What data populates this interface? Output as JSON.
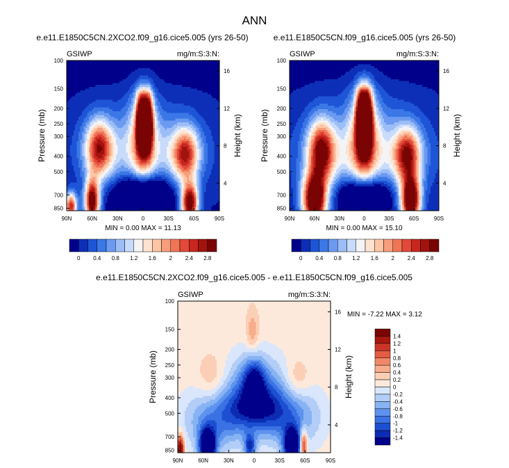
{
  "page": {
    "title": "ANN"
  },
  "chart_data": [
    {
      "type": "heatmap",
      "title": "e.e11.E1850C5CN.2XCO2.f09_g16.cice5.005 (yrs 26-50)",
      "left_label": "GSIWP",
      "right_label": "mg/m:S:3:N:",
      "xlabel": "",
      "ylabel": "Pressure (mb)",
      "y2label": "Height (km)",
      "x_ticks": [
        "90N",
        "60N",
        "30N",
        "0",
        "30S",
        "60S",
        "90S"
      ],
      "y_ticks": [
        "100",
        "150",
        "200",
        "250",
        "300",
        "400",
        "500",
        "700",
        "850"
      ],
      "y2_ticks": [
        "16",
        "12",
        "8",
        "4"
      ],
      "stats": "MIN =  0.00  MAX = 11.13",
      "min": 0.0,
      "max": 11.13,
      "colorbar": {
        "orientation": "horizontal",
        "labels": [
          "0",
          "0.4",
          "0.8",
          "1.2",
          "1.6",
          "2",
          "2.4",
          "2.8"
        ],
        "levels": [
          -0.2,
          0,
          0.2,
          0.4,
          0.6,
          0.8,
          1.0,
          1.2,
          1.4,
          1.6,
          1.8,
          2.0,
          2.2,
          2.4,
          2.6,
          2.8,
          3.0
        ]
      }
    },
    {
      "type": "heatmap",
      "title": "e.e11.E1850C5CN.f09_g16.cice5.005 (yrs 26-50)",
      "left_label": "GSIWP",
      "right_label": "mg/m:S:3:N:",
      "xlabel": "",
      "ylabel": "Pressure (mb)",
      "y2label": "Height (km)",
      "x_ticks": [
        "90N",
        "60N",
        "30N",
        "0",
        "30S",
        "60S",
        "90S"
      ],
      "y_ticks": [
        "100",
        "150",
        "200",
        "250",
        "300",
        "400",
        "500",
        "700",
        "850"
      ],
      "y2_ticks": [
        "16",
        "12",
        "8",
        "4"
      ],
      "stats": "MIN =  0.00  MAX = 15.10",
      "min": 0.0,
      "max": 15.1,
      "colorbar": {
        "orientation": "horizontal",
        "labels": [
          "0",
          "0.4",
          "0.8",
          "1.2",
          "1.6",
          "2",
          "2.4",
          "2.8"
        ],
        "levels": [
          -0.2,
          0,
          0.2,
          0.4,
          0.6,
          0.8,
          1.0,
          1.2,
          1.4,
          1.6,
          1.8,
          2.0,
          2.2,
          2.4,
          2.6,
          2.8,
          3.0
        ]
      }
    },
    {
      "type": "heatmap",
      "title": "e.e11.E1850C5CN.2XCO2.f09_g16.cice5.005 - e.e11.E1850C5CN.f09_g16.cice5.005",
      "left_label": "GSIWP",
      "right_label": "mg/m:S:3:N:",
      "xlabel": "",
      "ylabel": "Pressure (mb)",
      "y2label": "Height (km)",
      "x_ticks": [
        "90N",
        "60N",
        "30N",
        "0",
        "30S",
        "60S",
        "90S"
      ],
      "y_ticks": [
        "100",
        "150",
        "200",
        "250",
        "300",
        "400",
        "500",
        "700",
        "850"
      ],
      "y2_ticks": [
        "16",
        "12",
        "8",
        "4"
      ],
      "stats": "MIN = -7.22  MAX =  3.12",
      "min": -7.22,
      "max": 3.12,
      "colorbar": {
        "orientation": "vertical",
        "labels": [
          "1.4",
          "1.2",
          "1",
          "0.8",
          "0.6",
          "0.4",
          "0.2",
          "0",
          "-0.2",
          "-0.4",
          "-0.6",
          "-0.8",
          "-1",
          "-1.2",
          "-1.4"
        ],
        "levels": [
          -1.6,
          -1.4,
          -1.2,
          -1.0,
          -0.8,
          -0.6,
          -0.4,
          -0.2,
          0,
          0.2,
          0.4,
          0.6,
          0.8,
          1.0,
          1.2,
          1.4,
          1.6
        ]
      }
    }
  ],
  "colors": {
    "seq": [
      "#00008a",
      "#0d2fb8",
      "#1e55d6",
      "#3b78e6",
      "#6b9af0",
      "#9dbdf6",
      "#c8dbfa",
      "#f4f4f7",
      "#fde3cf",
      "#fbc5a6",
      "#f79e7c",
      "#f07555",
      "#e2493a",
      "#c8271f",
      "#a3130e",
      "#7a0403"
    ],
    "div": [
      "#00008a",
      "#0c2cb4",
      "#1d4fd2",
      "#3a72e3",
      "#5d93ee",
      "#88b3f3",
      "#b2cdf7",
      "#d9e6fb",
      "#fde9dc",
      "#fbcfb5",
      "#f7ad8c",
      "#f08868",
      "#e35d43",
      "#cc3526",
      "#a8170f",
      "#7a0403"
    ]
  }
}
